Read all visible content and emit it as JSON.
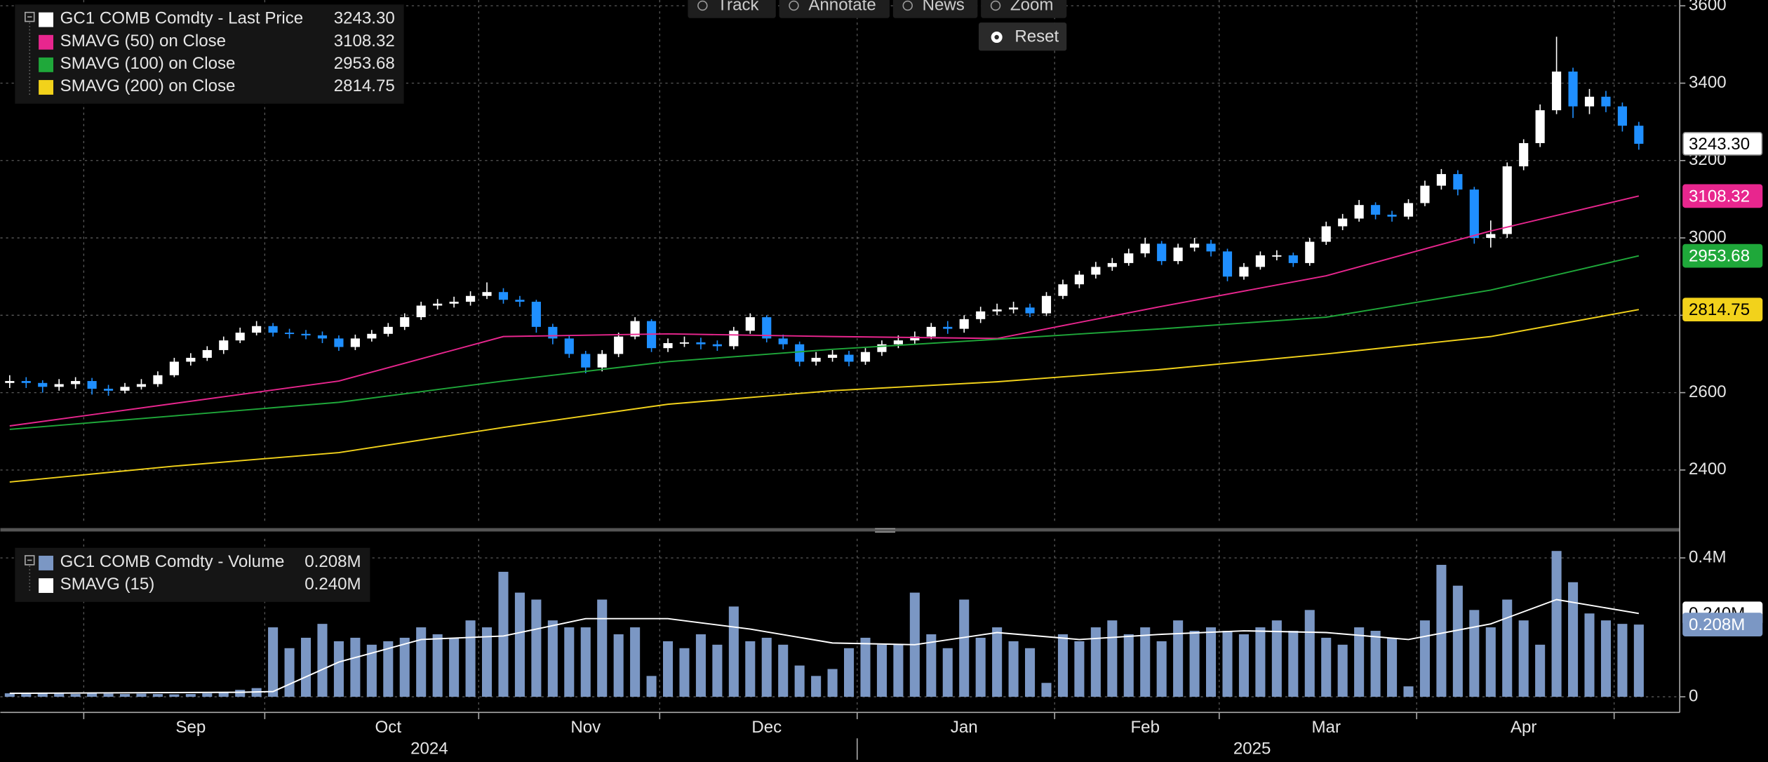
{
  "toolbar": [
    "Track",
    "Annotate",
    "News",
    "Zoom"
  ],
  "reset": "Reset",
  "chart_data": [
    {
      "type": "candlestick",
      "name": "GC1 COMB Comdty - Last Price",
      "last_label": "3243.30",
      "up_color": "#ffffff",
      "down_color": "#1f8fff",
      "categories": [
        null,
        null,
        null,
        null,
        null,
        null,
        null,
        null,
        null,
        null,
        null,
        "Sep",
        null,
        null,
        null,
        null,
        null,
        null,
        null,
        null,
        null,
        null,
        null,
        "Oct",
        null,
        null,
        null,
        null,
        null,
        null,
        null,
        null,
        null,
        null,
        null,
        "Nov",
        null,
        null,
        null,
        null,
        null,
        null,
        null,
        null,
        null,
        null,
        "Dec",
        null,
        null,
        null,
        null,
        null,
        null,
        null,
        null,
        null,
        null,
        null,
        "Jan",
        null,
        null,
        null,
        null,
        null,
        null,
        null,
        null,
        null,
        null,
        "Feb",
        null,
        null,
        null,
        null,
        null,
        null,
        null,
        null,
        null,
        null,
        "Mar",
        null,
        null,
        null,
        null,
        null,
        null,
        null,
        null,
        null,
        null,
        null,
        "Apr",
        null,
        null,
        null,
        null,
        null,
        null,
        null
      ],
      "groups": [
        {
          "label": "2024",
          "from": 0,
          "to": 51
        },
        {
          "label": "2025",
          "from": 52,
          "to": 99
        }
      ],
      "xticks": [
        5,
        16,
        29,
        40,
        52,
        64,
        74,
        86,
        98
      ],
      "open": [
        2625,
        2630,
        2625,
        2615,
        2622,
        2630,
        2610,
        2605,
        2615,
        2622,
        2645,
        2680,
        2690,
        2710,
        2735,
        2755,
        2772,
        2755,
        2752,
        2748,
        2740,
        2718,
        2740,
        2752,
        2770,
        2795,
        2825,
        2830,
        2835,
        2850,
        2860,
        2840,
        2835,
        2770,
        2740,
        2700,
        2665,
        2700,
        2745,
        2785,
        2715,
        2728,
        2730,
        2725,
        2720,
        2760,
        2795,
        2740,
        2725,
        2680,
        2690,
        2698,
        2680,
        2705,
        2725,
        2735,
        2745,
        2770,
        2765,
        2790,
        2810,
        2815,
        2820,
        2805,
        2850,
        2880,
        2905,
        2925,
        2935,
        2960,
        2985,
        2940,
        2975,
        2985,
        2965,
        2900,
        2925,
        2955,
        2955,
        2935,
        2990,
        3030,
        3050,
        3085,
        3060,
        3055,
        3090,
        3135,
        3165,
        3125,
        3000,
        3010,
        3185,
        3245,
        3330,
        3430,
        3340,
        3365,
        3340,
        3290
      ],
      "high": [
        2645,
        2640,
        2632,
        2635,
        2640,
        2638,
        2620,
        2625,
        2635,
        2655,
        2690,
        2702,
        2720,
        2745,
        2768,
        2785,
        2780,
        2765,
        2762,
        2758,
        2748,
        2750,
        2762,
        2780,
        2805,
        2835,
        2842,
        2848,
        2862,
        2885,
        2870,
        2850,
        2840,
        2778,
        2748,
        2708,
        2710,
        2755,
        2795,
        2790,
        2740,
        2745,
        2742,
        2735,
        2770,
        2805,
        2800,
        2750,
        2732,
        2705,
        2710,
        2708,
        2715,
        2735,
        2748,
        2758,
        2780,
        2785,
        2800,
        2822,
        2830,
        2835,
        2830,
        2860,
        2892,
        2915,
        2938,
        2948,
        2972,
        3000,
        2992,
        2985,
        3000,
        2995,
        2972,
        2935,
        2965,
        2968,
        2962,
        3000,
        3042,
        3062,
        3098,
        3092,
        3070,
        3100,
        3148,
        3178,
        3175,
        3132,
        3045,
        3195,
        3255,
        3345,
        3520,
        3440,
        3385,
        3380,
        3350,
        3300
      ],
      "low": [
        2612,
        2612,
        2600,
        2605,
        2610,
        2595,
        2592,
        2598,
        2608,
        2615,
        2640,
        2670,
        2682,
        2700,
        2728,
        2748,
        2745,
        2740,
        2738,
        2728,
        2708,
        2710,
        2732,
        2745,
        2762,
        2788,
        2815,
        2820,
        2825,
        2842,
        2830,
        2822,
        2755,
        2725,
        2690,
        2650,
        2655,
        2692,
        2738,
        2705,
        2705,
        2718,
        2712,
        2708,
        2712,
        2752,
        2730,
        2712,
        2668,
        2670,
        2680,
        2668,
        2672,
        2695,
        2715,
        2725,
        2738,
        2752,
        2755,
        2780,
        2800,
        2805,
        2795,
        2798,
        2842,
        2870,
        2895,
        2915,
        2928,
        2950,
        2930,
        2932,
        2965,
        2952,
        2888,
        2892,
        2918,
        2942,
        2925,
        2928,
        2982,
        3020,
        3042,
        3048,
        3042,
        3048,
        3082,
        3125,
        3110,
        2985,
        2975,
        3000,
        3175,
        3235,
        3320,
        3310,
        3320,
        3325,
        3275,
        3228
      ],
      "close": [
        2630,
        2625,
        2615,
        2622,
        2630,
        2610,
        2605,
        2615,
        2622,
        2645,
        2680,
        2690,
        2710,
        2735,
        2755,
        2772,
        2755,
        2752,
        2748,
        2740,
        2718,
        2740,
        2752,
        2770,
        2795,
        2825,
        2830,
        2835,
        2850,
        2860,
        2840,
        2835,
        2770,
        2740,
        2700,
        2665,
        2700,
        2745,
        2785,
        2715,
        2728,
        2730,
        2725,
        2720,
        2760,
        2795,
        2740,
        2725,
        2680,
        2690,
        2698,
        2680,
        2705,
        2725,
        2735,
        2745,
        2770,
        2765,
        2790,
        2810,
        2815,
        2820,
        2805,
        2850,
        2880,
        2905,
        2925,
        2935,
        2960,
        2985,
        2940,
        2975,
        2985,
        2965,
        2900,
        2925,
        2955,
        2955,
        2935,
        2990,
        3030,
        3050,
        3085,
        3060,
        3055,
        3090,
        3135,
        3165,
        3125,
        3000,
        3010,
        3185,
        3245,
        3330,
        3430,
        3340,
        3365,
        3340,
        3290,
        3243.3
      ],
      "series": [
        {
          "name": "SMAVG (50)  on Close",
          "color": "#e8268e",
          "label_color": "#ffffff",
          "last_label": "3108.32",
          "x": [
            0,
            10,
            20,
            30,
            40,
            50,
            60,
            70,
            80,
            90,
            99
          ],
          "values": [
            2514,
            2572,
            2630,
            2745,
            2752,
            2745,
            2740,
            2823,
            2902,
            3018,
            3108.32
          ]
        },
        {
          "name": "SMAVG (100)  on Close",
          "color": "#1fa83a",
          "label_color": "#ffffff",
          "last_label": "2953.68",
          "x": [
            0,
            10,
            20,
            30,
            40,
            50,
            60,
            70,
            80,
            90,
            99
          ],
          "values": [
            2505,
            2540,
            2575,
            2630,
            2680,
            2712,
            2738,
            2765,
            2795,
            2865,
            2953.68
          ]
        },
        {
          "name": "SMAVG (200)  on Close",
          "color": "#f2d21b",
          "label_color": "#000000",
          "last_label": "2814.75",
          "x": [
            0,
            10,
            20,
            30,
            40,
            50,
            60,
            70,
            80,
            90,
            99
          ],
          "values": [
            2369,
            2410,
            2445,
            2510,
            2570,
            2605,
            2628,
            2660,
            2700,
            2745,
            2814.75
          ]
        }
      ],
      "ylim": [
        2260,
        3615
      ],
      "yticks": [
        2400,
        2600,
        2800,
        3000,
        3200,
        3400,
        3600
      ],
      "grid": true
    },
    {
      "type": "bar",
      "name": "GC1 COMB Comdty - Volume",
      "last_label": "0.208M",
      "color": "#7b97c4",
      "values": [
        0.01,
        0.008,
        0.01,
        0.009,
        0.008,
        0.01,
        0.009,
        0.008,
        0.009,
        0.008,
        0.007,
        0.008,
        0.01,
        0.012,
        0.02,
        0.025,
        0.2,
        0.14,
        0.17,
        0.21,
        0.16,
        0.17,
        0.15,
        0.16,
        0.17,
        0.2,
        0.18,
        0.17,
        0.22,
        0.2,
        0.36,
        0.3,
        0.28,
        0.22,
        0.2,
        0.2,
        0.28,
        0.18,
        0.2,
        0.06,
        0.16,
        0.14,
        0.18,
        0.15,
        0.26,
        0.16,
        0.17,
        0.15,
        0.09,
        0.06,
        0.08,
        0.14,
        0.17,
        0.15,
        0.15,
        0.3,
        0.18,
        0.14,
        0.28,
        0.17,
        0.2,
        0.16,
        0.14,
        0.04,
        0.18,
        0.16,
        0.2,
        0.22,
        0.18,
        0.2,
        0.16,
        0.22,
        0.19,
        0.2,
        0.19,
        0.18,
        0.2,
        0.22,
        0.19,
        0.25,
        0.17,
        0.15,
        0.2,
        0.19,
        0.17,
        0.03,
        0.22,
        0.38,
        0.32,
        0.25,
        0.2,
        0.28,
        0.22,
        0.15,
        0.42,
        0.33,
        0.24,
        0.22,
        0.21,
        0.208
      ],
      "series": [
        {
          "name": "SMAVG (15)",
          "color": "#ffffff",
          "label_color": "#000000",
          "last_label": "0.240M",
          "x": [
            0,
            14,
            16,
            20,
            25,
            30,
            35,
            40,
            45,
            50,
            55,
            60,
            65,
            70,
            75,
            80,
            85,
            90,
            94,
            99
          ],
          "values": [
            0.01,
            0.013,
            0.015,
            0.1,
            0.165,
            0.175,
            0.225,
            0.225,
            0.195,
            0.155,
            0.15,
            0.185,
            0.165,
            0.18,
            0.19,
            0.185,
            0.165,
            0.21,
            0.28,
            0.24
          ]
        }
      ],
      "ylim": [
        -0.045,
        0.455
      ],
      "yticks": [
        0,
        {
          "value": 0.4,
          "label": "0.4M"
        }
      ],
      "grid": true
    }
  ]
}
